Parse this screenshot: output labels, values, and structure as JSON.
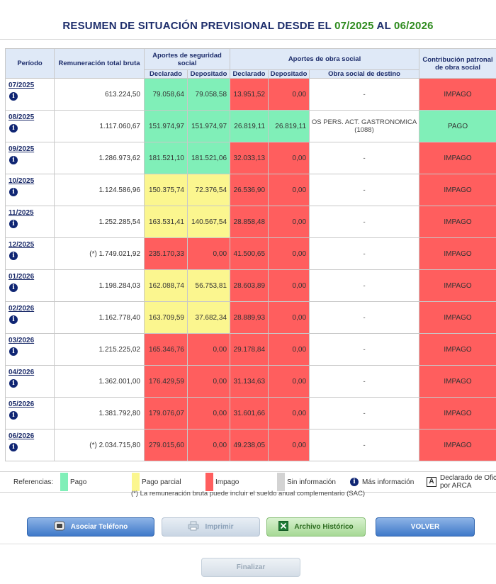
{
  "title": {
    "prefix": "RESUMEN DE SITUACIÓN PREVISIONAL DESDE EL",
    "from": "07/2025",
    "mid": "AL",
    "to": "06/2026"
  },
  "headers": {
    "periodo": "Período",
    "remuneracion": "Remuneración total bruta",
    "aportes_ss": "Aportes de seguridad social",
    "declarado": "Declarado",
    "depositado": "Depositado",
    "aportes_os": "Aportes de obra social",
    "obra_destino": "Obra social de destino",
    "contribucion": "Contribución patronal de obra social"
  },
  "colors": {
    "pago": "#80efb8",
    "parcial": "#fbf68f",
    "impago": "#ff5e5e",
    "sin_info": "#d3d3d3"
  },
  "rows": [
    {
      "periodo": "07/2025",
      "rem": "613.224,50",
      "ss_dec": "79.058,64",
      "ss_dep": "79.058,58",
      "ss_status": "green",
      "os_dec": "13.951,52",
      "os_dep": "0,00",
      "os_status": "red",
      "destino": "-",
      "contrib": "IMPAGO",
      "contrib_status": "red"
    },
    {
      "periodo": "08/2025",
      "rem": "1.117.060,67",
      "ss_dec": "151.974,97",
      "ss_dep": "151.974,97",
      "ss_status": "green",
      "os_dec": "26.819,11",
      "os_dep": "26.819,11",
      "os_status": "green",
      "destino": "OS PERS. ACT. GASTRONOMICA (1088)",
      "contrib": "PAGO",
      "contrib_status": "green"
    },
    {
      "periodo": "09/2025",
      "rem": "1.286.973,62",
      "ss_dec": "181.521,10",
      "ss_dep": "181.521,06",
      "ss_status": "green",
      "os_dec": "32.033,13",
      "os_dep": "0,00",
      "os_status": "red",
      "destino": "-",
      "contrib": "IMPAGO",
      "contrib_status": "red"
    },
    {
      "periodo": "10/2025",
      "rem": "1.124.586,96",
      "ss_dec": "150.375,74",
      "ss_dep": "72.376,54",
      "ss_status": "yellow",
      "os_dec": "26.536,90",
      "os_dep": "0,00",
      "os_status": "red",
      "destino": "-",
      "contrib": "IMPAGO",
      "contrib_status": "red"
    },
    {
      "periodo": "11/2025",
      "rem": "1.252.285,54",
      "ss_dec": "163.531,41",
      "ss_dep": "140.567,54",
      "ss_status": "yellow",
      "os_dec": "28.858,48",
      "os_dep": "0,00",
      "os_status": "red",
      "destino": "-",
      "contrib": "IMPAGO",
      "contrib_status": "red"
    },
    {
      "periodo": "12/2025",
      "rem": "(*) 1.749.021,92",
      "ss_dec": "235.170,33",
      "ss_dep": "0,00",
      "ss_status": "red",
      "os_dec": "41.500,65",
      "os_dep": "0,00",
      "os_status": "red",
      "destino": "-",
      "contrib": "IMPAGO",
      "contrib_status": "red"
    },
    {
      "periodo": "01/2026",
      "rem": "1.198.284,03",
      "ss_dec": "162.088,74",
      "ss_dep": "56.753,81",
      "ss_status": "yellow",
      "os_dec": "28.603,89",
      "os_dep": "0,00",
      "os_status": "red",
      "destino": "-",
      "contrib": "IMPAGO",
      "contrib_status": "red"
    },
    {
      "periodo": "02/2026",
      "rem": "1.162.778,40",
      "ss_dec": "163.709,59",
      "ss_dep": "37.682,34",
      "ss_status": "yellow",
      "os_dec": "28.889,93",
      "os_dep": "0,00",
      "os_status": "red",
      "destino": "-",
      "contrib": "IMPAGO",
      "contrib_status": "red"
    },
    {
      "periodo": "03/2026",
      "rem": "1.215.225,02",
      "ss_dec": "165.346,76",
      "ss_dep": "0,00",
      "ss_status": "red",
      "os_dec": "29.178,84",
      "os_dep": "0,00",
      "os_status": "red",
      "destino": "-",
      "contrib": "IMPAGO",
      "contrib_status": "red"
    },
    {
      "periodo": "04/2026",
      "rem": "1.362.001,00",
      "ss_dec": "176.429,59",
      "ss_dep": "0,00",
      "ss_status": "red",
      "os_dec": "31.134,63",
      "os_dep": "0,00",
      "os_status": "red",
      "destino": "-",
      "contrib": "IMPAGO",
      "contrib_status": "red"
    },
    {
      "periodo": "05/2026",
      "rem": "1.381.792,80",
      "ss_dec": "179.076,07",
      "ss_dep": "0,00",
      "ss_status": "red",
      "os_dec": "31.601,66",
      "os_dep": "0,00",
      "os_status": "red",
      "destino": "-",
      "contrib": "IMPAGO",
      "contrib_status": "red"
    },
    {
      "periodo": "06/2026",
      "rem": "(*) 2.034.715,80",
      "ss_dec": "279.015,60",
      "ss_dep": "0,00",
      "ss_status": "red",
      "os_dec": "49.238,05",
      "os_dep": "0,00",
      "os_status": "red",
      "destino": "-",
      "contrib": "IMPAGO",
      "contrib_status": "red"
    }
  ],
  "refs": {
    "label": "Referencias:",
    "pago": "Pago",
    "parcial": "Pago parcial",
    "impago": "Impago",
    "sin_info": "Sin información",
    "mas_info": "Más información",
    "declarado_oficio_icon": "A",
    "declarado_oficio_1": "Declarado de Ofic",
    "declarado_oficio_2": "por ARCA"
  },
  "note": "(*) La remuneración bruta puede incluir el sueldo anual complementario (SAC)",
  "buttons": {
    "asociar": "Asociar Teléfono",
    "imprimir": "Imprimir",
    "archivo": "Archivo Histórico",
    "volver": "VOLVER",
    "finalizar": "Finalizar"
  },
  "icons": {
    "info": "info-icon",
    "phone": "phone-icon",
    "printer": "printer-icon",
    "excel": "excel-icon"
  }
}
